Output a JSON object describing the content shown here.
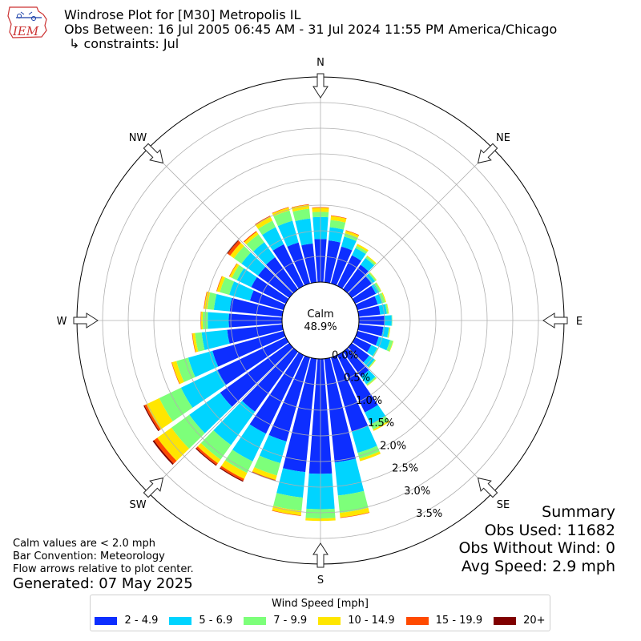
{
  "header": {
    "title": "Windrose Plot for [M30] Metropolis  IL",
    "obs_between": "Obs Between: 16 Jul 2005 06:45 AM - 31 Jul 2024 11:55 PM America/Chicago",
    "constraints": "↳ constraints: Jul",
    "logo_text": "IEM"
  },
  "notes": {
    "calm_note": "Calm values are < 2.0 mph",
    "bar_convention": "Bar Convention: Meteorology",
    "flow_arrows": "Flow arrows relative to plot center.",
    "generated": "Generated: 07 May 2025"
  },
  "summary": {
    "title": "Summary",
    "obs_used": "Obs Used: 11682",
    "obs_without_wind": "Obs Without Wind: 0",
    "avg_speed": "Avg Speed: 2.9 mph"
  },
  "legend": {
    "title": "Wind Speed [mph]",
    "items": [
      {
        "label": "2 - 4.9",
        "color": "#0d2eff"
      },
      {
        "label": "5 - 6.9",
        "color": "#00d4ff"
      },
      {
        "label": "7 - 9.9",
        "color": "#7dff7a"
      },
      {
        "label": "10 - 14.9",
        "color": "#ffe600"
      },
      {
        "label": "15 - 19.9",
        "color": "#ff4a00"
      },
      {
        "label": "20+",
        "color": "#800000"
      }
    ]
  },
  "chart_data": {
    "type": "windrose",
    "calm_label": "Calm",
    "calm_value": "48.9%",
    "radial_tick_labels": [
      "0.0%",
      "0.5%",
      "1.0%",
      "1.5%",
      "2.0%",
      "2.5%",
      "3.0%",
      "3.5%"
    ],
    "radial_ticks": [
      0.0,
      0.5,
      1.0,
      1.5,
      2.0,
      2.5,
      3.0,
      3.5
    ],
    "rmax": 4.0,
    "direction_labels": [
      "N",
      "NE",
      "E",
      "SE",
      "S",
      "SW",
      "W",
      "NW"
    ],
    "speed_bins": [
      "2 - 4.9",
      "5 - 6.9",
      "7 - 9.9",
      "10 - 14.9",
      "15 - 19.9",
      "20+"
    ],
    "bin_colors": [
      "#0d2eff",
      "#00d4ff",
      "#7dff7a",
      "#ffe600",
      "#ff4a00",
      "#800000"
    ],
    "directions_deg": [
      0,
      10,
      20,
      30,
      40,
      50,
      60,
      70,
      80,
      90,
      100,
      110,
      120,
      130,
      140,
      150,
      160,
      170,
      180,
      190,
      200,
      210,
      220,
      230,
      240,
      250,
      260,
      270,
      280,
      290,
      300,
      310,
      320,
      330,
      340,
      350
    ],
    "cumulative_by_direction": [
      [
        0.84,
        1.27,
        1.37,
        1.45,
        1.46,
        1.46
      ],
      [
        0.82,
        1.08,
        1.22,
        1.3,
        1.31,
        1.31
      ],
      [
        0.75,
        0.95,
        1.02,
        1.07,
        1.08,
        1.08
      ],
      [
        0.66,
        0.82,
        0.87,
        0.91,
        0.91,
        0.91
      ],
      [
        0.59,
        0.75,
        0.79,
        0.81,
        0.81,
        0.81
      ],
      [
        0.48,
        0.56,
        0.59,
        0.6,
        0.6,
        0.6
      ],
      [
        0.45,
        0.52,
        0.56,
        0.57,
        0.57,
        0.57
      ],
      [
        0.41,
        0.51,
        0.56,
        0.58,
        0.58,
        0.58
      ],
      [
        0.42,
        0.55,
        0.58,
        0.59,
        0.59,
        0.59
      ],
      [
        0.5,
        0.64,
        0.65,
        0.65,
        0.65,
        0.65
      ],
      [
        0.48,
        0.59,
        0.61,
        0.62,
        0.62,
        0.62
      ],
      [
        0.43,
        0.66,
        0.72,
        0.73,
        0.73,
        0.73
      ],
      [
        0.35,
        0.48,
        0.5,
        0.5,
        0.5,
        0.5
      ],
      [
        0.42,
        0.55,
        0.57,
        0.58,
        0.58,
        0.58
      ],
      [
        0.6,
        0.78,
        0.81,
        0.82,
        0.82,
        0.82
      ],
      [
        1.24,
        1.5,
        1.61,
        1.64,
        1.64,
        1.64
      ],
      [
        1.5,
        1.93,
        2.05,
        2.1,
        2.1,
        2.1
      ],
      [
        2.03,
        2.68,
        3.02,
        3.11,
        3.12,
        3.12
      ],
      [
        2.24,
        2.93,
        3.11,
        3.16,
        3.16,
        3.16
      ],
      [
        2.22,
        2.72,
        2.98,
        3.07,
        3.08,
        3.08
      ],
      [
        1.7,
        2.14,
        2.39,
        2.48,
        2.49,
        2.5
      ],
      [
        1.7,
        2.3,
        2.55,
        2.68,
        2.72,
        2.74
      ],
      [
        1.44,
        2.24,
        2.59,
        2.68,
        2.72,
        2.74
      ],
      [
        1.66,
        2.4,
        2.83,
        3.17,
        3.25,
        3.28
      ],
      [
        1.48,
        2.27,
        2.74,
        3.02,
        3.06,
        3.08
      ],
      [
        1.44,
        1.93,
        2.17,
        2.26,
        2.27,
        2.27
      ],
      [
        1.08,
        1.58,
        1.71,
        1.76,
        1.77,
        1.77
      ],
      [
        1.04,
        1.45,
        1.55,
        1.58,
        1.59,
        1.59
      ],
      [
        1.03,
        1.34,
        1.47,
        1.53,
        1.54,
        1.54
      ],
      [
        0.68,
        1.1,
        1.29,
        1.35,
        1.36,
        1.36
      ],
      [
        0.75,
        1.06,
        1.17,
        1.22,
        1.23,
        1.23
      ],
      [
        0.75,
        1.15,
        1.33,
        1.42,
        1.48,
        1.5
      ],
      [
        0.77,
        1.13,
        1.32,
        1.38,
        1.4,
        1.4
      ],
      [
        0.9,
        1.27,
        1.41,
        1.5,
        1.52,
        1.52
      ],
      [
        0.83,
        1.27,
        1.48,
        1.54,
        1.55,
        1.55
      ],
      [
        0.76,
        1.25,
        1.44,
        1.52,
        1.53,
        1.53
      ]
    ]
  }
}
